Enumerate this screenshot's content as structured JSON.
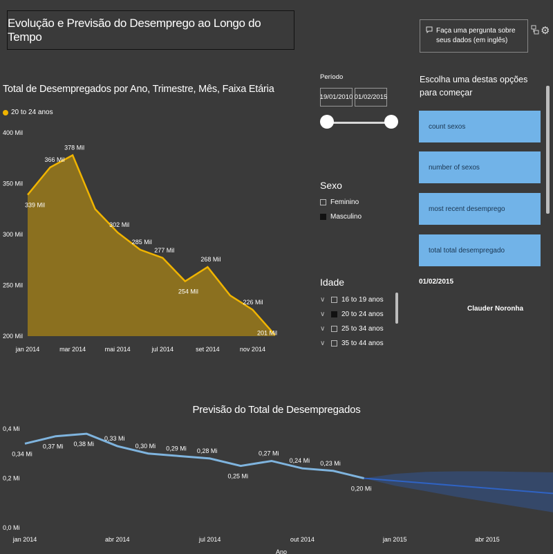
{
  "report": {
    "title": "Evolução e Previsão do Desemprego ao Longo do Tempo"
  },
  "area_chart": {
    "title": "Total de Desempregados por Ano, Trimestre, Mês, Faixa Etária",
    "legend_label": "20 to 24 anos",
    "color": "#f0b400"
  },
  "forecast_chart": {
    "title": "Previsão do Total de Desempregados",
    "x_axis_label": "Ano",
    "line_color": "#7fb4de",
    "forecast_color": "#2f63c4"
  },
  "chart_data": [
    {
      "type": "area",
      "title": "Total de Desempregados por Ano, Trimestre, Mês, Faixa Etária",
      "series": [
        {
          "name": "20 to 24 anos",
          "values": [
            339,
            366,
            378,
            325,
            302,
            285,
            277,
            254,
            268,
            240,
            226,
            201
          ],
          "labels": [
            "339 Mil",
            "366 Mil",
            "378 Mil",
            "",
            "302 Mil",
            "285 Mil",
            "277 Mil",
            "254 Mil",
            "268 Mil",
            "",
            "226 Mil",
            "201 Mil"
          ]
        }
      ],
      "categories": [
        "jan 2014",
        "fev 2014",
        "mar 2014",
        "abr 2014",
        "mai 2014",
        "jun 2014",
        "jul 2014",
        "ago 2014",
        "set 2014",
        "out 2014",
        "nov 2014",
        "dez 2014"
      ],
      "x_tick_labels": [
        "jan 2014",
        "mar 2014",
        "mai 2014",
        "jul 2014",
        "set 2014",
        "nov 2014"
      ],
      "y_tick_labels": [
        "400 Mil",
        "350 Mil",
        "300 Mil",
        "250 Mil",
        "200 Mil"
      ],
      "ylim": [
        200,
        400
      ],
      "grid": false,
      "legend": "top-left"
    },
    {
      "type": "line",
      "title": "Previsão do Total de Desempregados",
      "xlabel": "Ano",
      "series": [
        {
          "name": "Total de Desempregados",
          "values": [
            0.34,
            0.37,
            0.38,
            0.33,
            0.3,
            0.29,
            0.28,
            0.25,
            0.27,
            0.24,
            0.23,
            0.2
          ],
          "labels": [
            "0,34 Mi",
            "0,37 Mi",
            "0,38 Mi",
            "0,33 Mi",
            "0,30 Mi",
            "0,29 Mi",
            "0,28 Mi",
            "0,25 Mi",
            "0,27 Mi",
            "0,24 Mi",
            "0,23 Mi",
            "0,20 Mi"
          ]
        },
        {
          "name": "Previsão",
          "months_ahead": [
            0,
            1,
            2,
            3,
            4,
            5,
            6,
            7
          ],
          "values": [
            0.2,
            0.19,
            0.18,
            0.17,
            0.16,
            0.15,
            0.14,
            0.13
          ],
          "upper": [
            0.2,
            0.218,
            0.226,
            0.228,
            0.228,
            0.226,
            0.224,
            0.222
          ],
          "lower": [
            0.2,
            0.17,
            0.148,
            0.125,
            0.105,
            0.085,
            0.065,
            0.045
          ]
        }
      ],
      "x_tick_labels": [
        "jan 2014",
        "abr 2014",
        "jul 2014",
        "out 2014",
        "jan 2015",
        "abr 2015"
      ],
      "y_tick_labels": [
        "0,4 Mi",
        "0,2 Mi",
        "0,0 Mi"
      ],
      "ylim": [
        0,
        0.4
      ],
      "grid": false,
      "legend": "none"
    }
  ],
  "period_slicer": {
    "label": "Período",
    "start_date": "19/01/2010",
    "end_date": "01/02/2015"
  },
  "sex_slicer": {
    "title": "Sexo",
    "items": [
      {
        "label": "Feminino",
        "checked": false
      },
      {
        "label": "Masculino",
        "checked": true
      }
    ]
  },
  "age_slicer": {
    "title": "Idade",
    "items": [
      {
        "label": "16 to 19 anos",
        "checked": false
      },
      {
        "label": "20 to 24 anos",
        "checked": true
      },
      {
        "label": "25 to 34 anos",
        "checked": false
      },
      {
        "label": "35 to 44 anos",
        "checked": false
      }
    ]
  },
  "qa_panel": {
    "prompt": "Faça uma pergunta sobre seus dados (em inglês)",
    "heading": "Escolha uma destas opções para começar",
    "options": [
      "count sexos",
      "number of sexos",
      "most recent desemprego",
      "total total desempregado"
    ],
    "date_card": "01/02/2015",
    "author": "Clauder Noronha",
    "option_color": "#71b3e8"
  }
}
